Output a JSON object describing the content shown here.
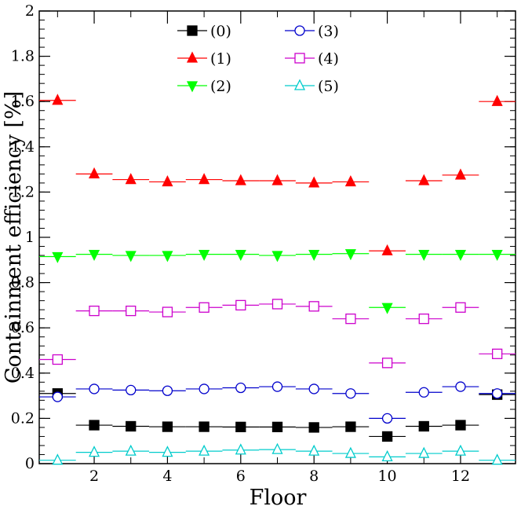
{
  "chart_data": {
    "type": "scatter",
    "title": "",
    "xlabel": "Floor",
    "ylabel": "Containment efficiency [%]",
    "xlim": [
      0.5,
      13.5
    ],
    "ylim": [
      0,
      2
    ],
    "grid": false,
    "legend_position": "top-center",
    "x_ticks": [
      2,
      4,
      6,
      8,
      10,
      12
    ],
    "x_tick_labels": [
      "2",
      "4",
      "6",
      "8",
      "10",
      "12"
    ],
    "y_ticks": [
      0,
      0.2,
      0.4,
      0.6,
      0.8,
      1,
      1.2,
      1.4,
      1.6,
      1.8,
      2
    ],
    "y_tick_labels": [
      "0",
      "0.2",
      "0.4",
      "0.6",
      "0.8",
      "1",
      "1.2",
      "1.4",
      "1.6",
      "1.8",
      "2"
    ],
    "x_error_halfwidth": 0.5,
    "x": [
      1,
      2,
      3,
      4,
      5,
      6,
      7,
      8,
      9,
      10,
      11,
      12,
      13
    ],
    "series": [
      {
        "name": "(0)",
        "color": "#000000",
        "marker": "square-filled",
        "values": [
          0.31,
          0.17,
          0.165,
          0.163,
          0.163,
          0.162,
          0.162,
          0.16,
          0.163,
          0.12,
          0.165,
          0.17,
          0.305
        ]
      },
      {
        "name": "(1)",
        "color": "#ff0000",
        "marker": "triangle-up-filled",
        "values": [
          1.605,
          1.28,
          1.255,
          1.245,
          1.255,
          1.25,
          1.25,
          1.24,
          1.245,
          0.94,
          1.25,
          1.275,
          1.6
        ]
      },
      {
        "name": "(2)",
        "color": "#00ff00",
        "marker": "triangle-down-filled",
        "values": [
          0.915,
          0.925,
          0.92,
          0.92,
          0.925,
          0.925,
          0.92,
          0.925,
          0.928,
          0.69,
          0.925,
          0.925,
          0.925
        ]
      },
      {
        "name": "(3)",
        "color": "#0000cc",
        "marker": "circle-open",
        "values": [
          0.295,
          0.33,
          0.325,
          0.322,
          0.33,
          0.335,
          0.34,
          0.33,
          0.31,
          0.2,
          0.315,
          0.34,
          0.31
        ]
      },
      {
        "name": "(4)",
        "color": "#cc00cc",
        "marker": "square-open",
        "values": [
          0.46,
          0.675,
          0.675,
          0.67,
          0.69,
          0.7,
          0.705,
          0.695,
          0.64,
          0.445,
          0.64,
          0.69,
          0.485
        ]
      },
      {
        "name": "(5)",
        "color": "#00cccc",
        "marker": "triangle-up-open",
        "values": [
          0.015,
          0.05,
          0.055,
          0.05,
          0.055,
          0.06,
          0.062,
          0.055,
          0.045,
          0.03,
          0.045,
          0.055,
          0.015
        ]
      }
    ]
  }
}
